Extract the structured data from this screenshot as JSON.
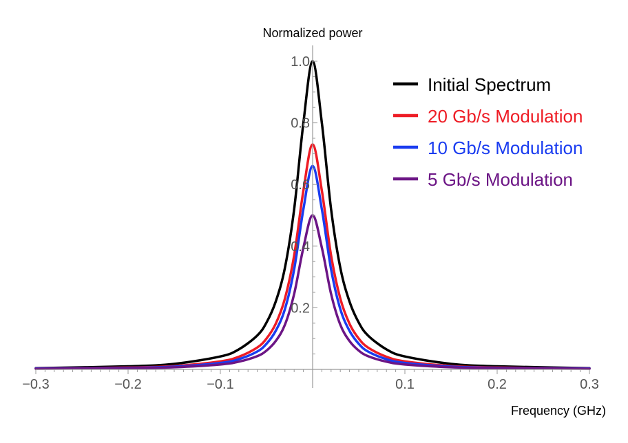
{
  "chart_data": {
    "type": "line",
    "xlabel": "Frequency (GHz)",
    "ylabel": "Normalized power",
    "xlim": [
      -0.3,
      0.3
    ],
    "ylim": [
      0,
      1.0
    ],
    "x_ticks": [
      {
        "value": -0.3,
        "label": "−0.3"
      },
      {
        "value": -0.2,
        "label": "−0.2"
      },
      {
        "value": -0.1,
        "label": "−0.1"
      },
      {
        "value": 0.1,
        "label": "0.1"
      },
      {
        "value": 0.2,
        "label": "0.2"
      },
      {
        "value": 0.3,
        "label": "0.3"
      }
    ],
    "y_ticks": [
      {
        "value": 0.2,
        "label": "0.2"
      },
      {
        "value": 0.4,
        "label": "0.4"
      },
      {
        "value": 0.6,
        "label": "0.6"
      },
      {
        "value": 0.8,
        "label": "0.8"
      },
      {
        "value": 1.0,
        "label": "1.0"
      }
    ],
    "grid": false,
    "legend_position": "top-right",
    "series": [
      {
        "name": "Initial Spectrum",
        "color": "#000000",
        "x": [
          -0.3,
          -0.2,
          -0.15,
          -0.1,
          -0.08,
          -0.06,
          -0.05,
          -0.04,
          -0.03,
          -0.02,
          -0.01,
          0.0,
          0.01,
          0.02,
          0.03,
          0.04,
          0.05,
          0.06,
          0.08,
          0.1,
          0.15,
          0.2,
          0.3
        ],
        "y": [
          0.004,
          0.01,
          0.018,
          0.042,
          0.065,
          0.11,
          0.152,
          0.22,
          0.33,
          0.52,
          0.8,
          1.0,
          0.8,
          0.52,
          0.33,
          0.22,
          0.152,
          0.11,
          0.065,
          0.042,
          0.018,
          0.01,
          0.004
        ]
      },
      {
        "name": "20 Gb/s Modulation",
        "color": "#ee1c25",
        "x": [
          -0.3,
          -0.2,
          -0.15,
          -0.1,
          -0.08,
          -0.06,
          -0.05,
          -0.04,
          -0.03,
          -0.02,
          -0.01,
          0.0,
          0.01,
          0.02,
          0.03,
          0.04,
          0.05,
          0.06,
          0.08,
          0.1,
          0.15,
          0.2,
          0.3
        ],
        "y": [
          0.003,
          0.006,
          0.011,
          0.026,
          0.041,
          0.071,
          0.1,
          0.148,
          0.23,
          0.37,
          0.58,
          0.73,
          0.58,
          0.37,
          0.23,
          0.148,
          0.1,
          0.071,
          0.041,
          0.026,
          0.011,
          0.006,
          0.003
        ]
      },
      {
        "name": "10 Gb/s Modulation",
        "color": "#1a3cf0",
        "x": [
          -0.3,
          -0.2,
          -0.15,
          -0.1,
          -0.08,
          -0.06,
          -0.05,
          -0.04,
          -0.03,
          -0.02,
          -0.01,
          0.0,
          0.01,
          0.02,
          0.03,
          0.04,
          0.05,
          0.06,
          0.08,
          0.1,
          0.15,
          0.2,
          0.3
        ],
        "y": [
          0.003,
          0.005,
          0.009,
          0.021,
          0.033,
          0.058,
          0.083,
          0.125,
          0.196,
          0.325,
          0.52,
          0.66,
          0.52,
          0.325,
          0.196,
          0.125,
          0.083,
          0.058,
          0.033,
          0.021,
          0.009,
          0.005,
          0.003
        ]
      },
      {
        "name": "5 Gb/s Modulation",
        "color": "#6c1585",
        "x": [
          -0.3,
          -0.2,
          -0.15,
          -0.1,
          -0.08,
          -0.06,
          -0.05,
          -0.04,
          -0.03,
          -0.02,
          -0.01,
          0.0,
          0.01,
          0.02,
          0.03,
          0.04,
          0.05,
          0.06,
          0.08,
          0.1,
          0.15,
          0.2,
          0.3
        ],
        "y": [
          0.002,
          0.004,
          0.007,
          0.016,
          0.025,
          0.043,
          0.061,
          0.092,
          0.145,
          0.245,
          0.395,
          0.5,
          0.395,
          0.245,
          0.145,
          0.092,
          0.061,
          0.043,
          0.025,
          0.016,
          0.007,
          0.004,
          0.002
        ]
      }
    ]
  }
}
